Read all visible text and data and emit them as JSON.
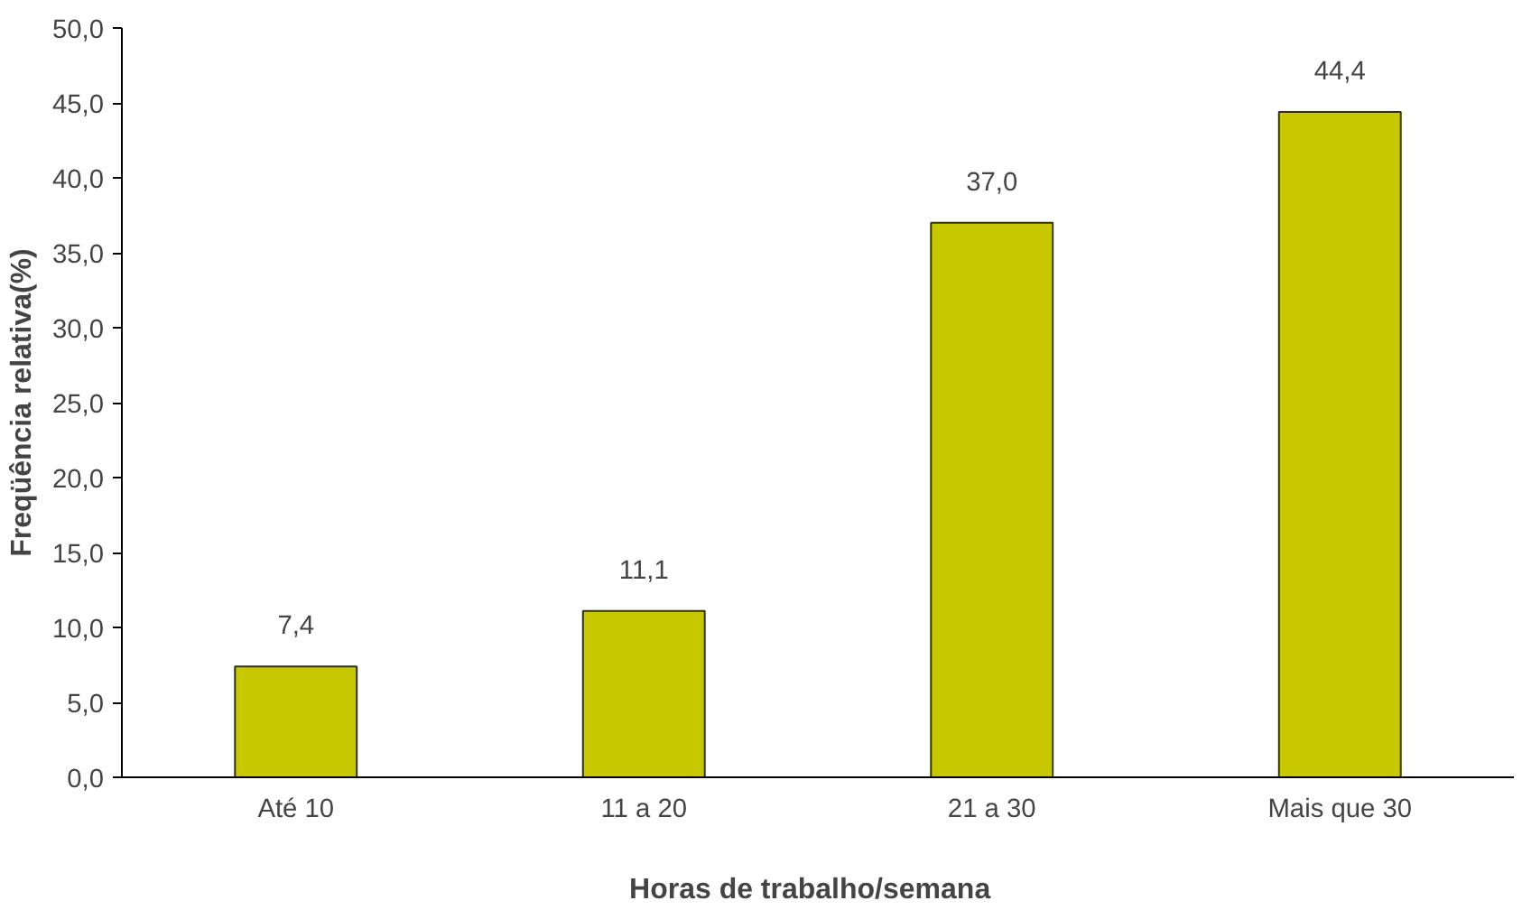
{
  "chart_data": {
    "type": "bar",
    "xlabel": "Horas  de  trabalho/semana",
    "ylabel": "Freqüência relativa(%)",
    "categories": [
      "Até 10",
      "11 a 20",
      "21 a 30",
      "Mais que 30"
    ],
    "values": [
      7.4,
      11.1,
      37.0,
      44.4
    ],
    "value_labels": [
      "7,4",
      "11,1",
      "37,0",
      "44,4"
    ],
    "color": "#c8c800",
    "ylim": [
      0,
      50
    ],
    "yticks": [
      {
        "value": 0,
        "label": "0,0"
      },
      {
        "value": 5,
        "label": "5,0"
      },
      {
        "value": 10,
        "label": "10,0"
      },
      {
        "value": 15,
        "label": "15,0"
      },
      {
        "value": 20,
        "label": "20,0"
      },
      {
        "value": 25,
        "label": "25,0"
      },
      {
        "value": 30,
        "label": "30,0"
      },
      {
        "value": 35,
        "label": "35,0"
      },
      {
        "value": 40,
        "label": "40,0"
      },
      {
        "value": 45,
        "label": "45,0"
      },
      {
        "value": 50,
        "label": "50,0"
      }
    ],
    "grid": false
  }
}
